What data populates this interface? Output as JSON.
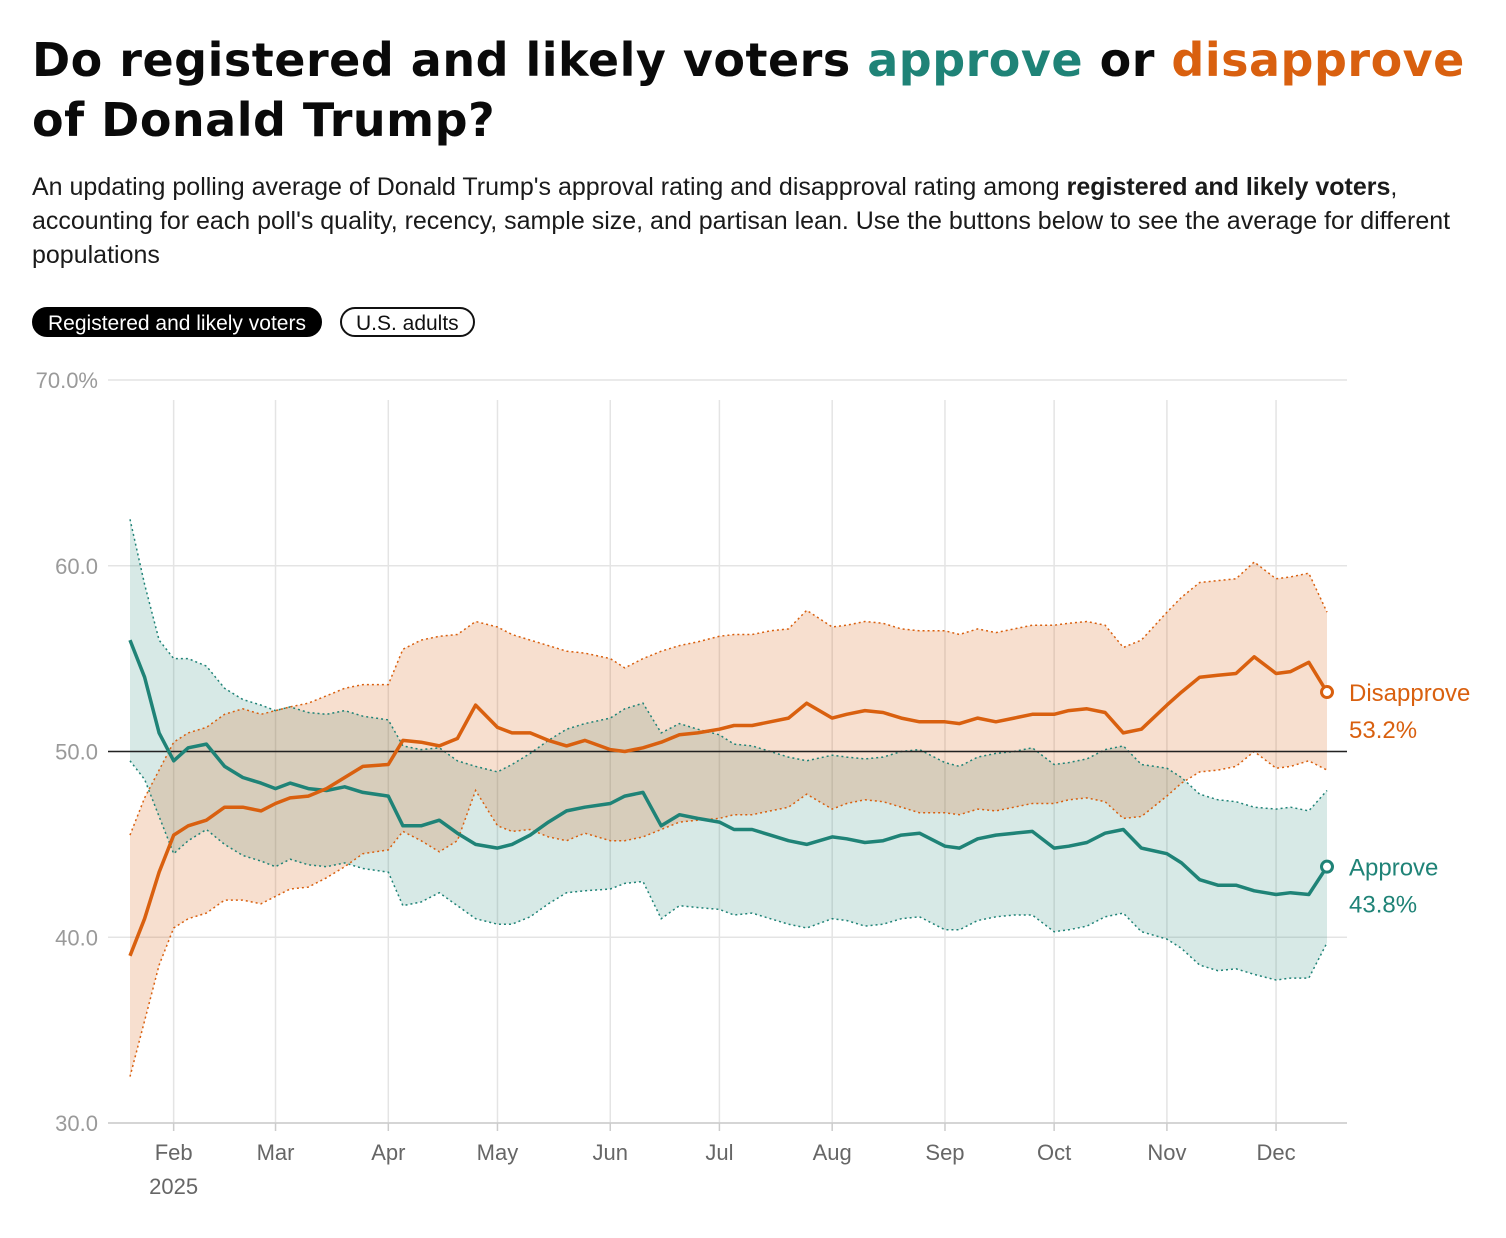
{
  "header": {
    "title_prefix": "Do registered and likely voters ",
    "title_approve": "approve",
    "title_or": " or ",
    "title_disapprove": "disapprove",
    "title_suffix": " of Donald Trump?",
    "subtitle_prefix": "An updating polling average of Donald Trump's approval rating and disapproval rating among ",
    "subtitle_bold": "registered and likely voters",
    "subtitle_suffix": ", accounting for each poll's quality, recency, sample size, and partisan lean. Use the buttons below to see the average for different populations"
  },
  "toggles": {
    "active_label": "Registered and likely voters",
    "other_label": "U.S. adults"
  },
  "colors": {
    "approve": "#1f8377",
    "disapprove": "#d9600f",
    "approve_band": "#d3e6e1",
    "disapprove_band": "#f8dbcc"
  },
  "chart_data": {
    "type": "line",
    "title": "Do registered and likely voters approve or disapprove of Donald Trump?",
    "ylim": [
      30,
      70
    ],
    "y_ticks": [
      30,
      40,
      50,
      60,
      70
    ],
    "y_tick_labels": [
      "30.0",
      "40.0",
      "50.0",
      "60.0",
      "70.0%"
    ],
    "reference_line": 50,
    "grid": true,
    "x_ticks": [
      "2025-02-01",
      "2025-03-01",
      "2025-04-01",
      "2025-05-01",
      "2025-06-01",
      "2025-07-01",
      "2025-08-01",
      "2025-09-01",
      "2025-10-01",
      "2025-11-01",
      "2025-12-01"
    ],
    "x_tick_labels": [
      "Feb",
      "Mar",
      "Apr",
      "May",
      "Jun",
      "Jul",
      "Aug",
      "Sep",
      "Oct",
      "Nov",
      "Dec"
    ],
    "x_year_label": "2025",
    "x": [
      "2025-01-20",
      "2025-01-24",
      "2025-01-28",
      "2025-02-01",
      "2025-02-05",
      "2025-02-10",
      "2025-02-15",
      "2025-02-20",
      "2025-02-25",
      "2025-03-01",
      "2025-03-05",
      "2025-03-10",
      "2025-03-15",
      "2025-03-20",
      "2025-03-25",
      "2025-04-01",
      "2025-04-05",
      "2025-04-10",
      "2025-04-15",
      "2025-04-20",
      "2025-04-25",
      "2025-05-01",
      "2025-05-05",
      "2025-05-10",
      "2025-05-15",
      "2025-05-20",
      "2025-05-25",
      "2025-06-01",
      "2025-06-05",
      "2025-06-10",
      "2025-06-15",
      "2025-06-20",
      "2025-06-25",
      "2025-07-01",
      "2025-07-05",
      "2025-07-10",
      "2025-07-15",
      "2025-07-20",
      "2025-07-25",
      "2025-08-01",
      "2025-08-05",
      "2025-08-10",
      "2025-08-15",
      "2025-08-20",
      "2025-08-25",
      "2025-09-01",
      "2025-09-05",
      "2025-09-10",
      "2025-09-15",
      "2025-09-20",
      "2025-09-25",
      "2025-10-01",
      "2025-10-05",
      "2025-10-10",
      "2025-10-15",
      "2025-10-20",
      "2025-10-25",
      "2025-11-01",
      "2025-11-05",
      "2025-11-10",
      "2025-11-15",
      "2025-11-20",
      "2025-11-25",
      "2025-12-01",
      "2025-12-05",
      "2025-12-10",
      "2025-12-15"
    ],
    "series": [
      {
        "name": "Disapprove",
        "end_value_label": "53.2%",
        "values": [
          39.0,
          41.0,
          43.5,
          45.5,
          46.0,
          46.3,
          47.0,
          47.0,
          46.8,
          47.2,
          47.5,
          47.6,
          48.0,
          48.6,
          49.2,
          49.3,
          50.6,
          50.5,
          50.3,
          50.7,
          52.5,
          51.3,
          51.0,
          51.0,
          50.6,
          50.3,
          50.6,
          50.1,
          50.0,
          50.2,
          50.5,
          50.9,
          51.0,
          51.2,
          51.4,
          51.4,
          51.6,
          51.8,
          52.6,
          51.8,
          52.0,
          52.2,
          52.1,
          51.8,
          51.6,
          51.6,
          51.5,
          51.8,
          51.6,
          51.8,
          52.0,
          52.0,
          52.2,
          52.3,
          52.1,
          51.0,
          51.2,
          52.5,
          53.2,
          54.0,
          54.1,
          54.2,
          55.1,
          54.2,
          54.3,
          54.8,
          53.2
        ],
        "upper": [
          45.5,
          47.5,
          49.0,
          50.5,
          51.0,
          51.3,
          52.0,
          52.3,
          52.0,
          52.2,
          52.4,
          52.6,
          53.0,
          53.4,
          53.6,
          53.6,
          55.5,
          56.0,
          56.2,
          56.3,
          57.0,
          56.7,
          56.3,
          56.0,
          55.7,
          55.4,
          55.3,
          55.0,
          54.5,
          55.0,
          55.4,
          55.7,
          55.9,
          56.2,
          56.3,
          56.3,
          56.5,
          56.6,
          57.6,
          56.7,
          56.8,
          57.0,
          56.9,
          56.6,
          56.5,
          56.5,
          56.3,
          56.6,
          56.4,
          56.6,
          56.8,
          56.8,
          56.9,
          57.0,
          56.8,
          55.6,
          56.0,
          57.5,
          58.3,
          59.1,
          59.2,
          59.3,
          60.2,
          59.3,
          59.4,
          59.6,
          57.5
        ],
        "lower": [
          32.5,
          35.5,
          38.5,
          40.5,
          41.0,
          41.3,
          42.0,
          42.0,
          41.8,
          42.2,
          42.6,
          42.7,
          43.2,
          43.8,
          44.5,
          44.7,
          45.7,
          45.2,
          44.6,
          45.2,
          47.9,
          46.0,
          45.7,
          45.8,
          45.4,
          45.2,
          45.6,
          45.2,
          45.2,
          45.4,
          45.8,
          46.2,
          46.3,
          46.4,
          46.6,
          46.6,
          46.8,
          47.0,
          47.7,
          46.9,
          47.2,
          47.4,
          47.3,
          47.0,
          46.7,
          46.7,
          46.6,
          46.9,
          46.8,
          47.0,
          47.2,
          47.2,
          47.4,
          47.5,
          47.3,
          46.4,
          46.5,
          47.6,
          48.3,
          48.9,
          49.0,
          49.2,
          50.0,
          49.1,
          49.2,
          49.5,
          49.0
        ]
      },
      {
        "name": "Approve",
        "end_value_label": "43.8%",
        "values": [
          56.0,
          54.0,
          51.0,
          49.5,
          50.2,
          50.4,
          49.2,
          48.6,
          48.3,
          48.0,
          48.3,
          48.0,
          47.9,
          48.1,
          47.8,
          47.6,
          46.0,
          46.0,
          46.3,
          45.6,
          45.0,
          44.8,
          45.0,
          45.5,
          46.2,
          46.8,
          47.0,
          47.2,
          47.6,
          47.8,
          46.0,
          46.6,
          46.4,
          46.2,
          45.8,
          45.8,
          45.5,
          45.2,
          45.0,
          45.4,
          45.3,
          45.1,
          45.2,
          45.5,
          45.6,
          44.9,
          44.8,
          45.3,
          45.5,
          45.6,
          45.7,
          44.8,
          44.9,
          45.1,
          45.6,
          45.8,
          44.8,
          44.5,
          44.0,
          43.1,
          42.8,
          42.8,
          42.5,
          42.3,
          42.4,
          42.3,
          43.8
        ],
        "upper": [
          62.5,
          59.0,
          56.0,
          55.0,
          55.0,
          54.6,
          53.4,
          52.8,
          52.5,
          52.2,
          52.4,
          52.1,
          52.0,
          52.2,
          51.9,
          51.7,
          50.3,
          50.1,
          50.2,
          49.5,
          49.2,
          48.9,
          49.3,
          49.9,
          50.6,
          51.2,
          51.5,
          51.8,
          52.3,
          52.6,
          51.0,
          51.5,
          51.2,
          50.9,
          50.4,
          50.3,
          50.0,
          49.7,
          49.5,
          49.8,
          49.7,
          49.6,
          49.7,
          50.0,
          50.1,
          49.4,
          49.2,
          49.7,
          49.9,
          50.0,
          50.2,
          49.3,
          49.4,
          49.6,
          50.1,
          50.3,
          49.3,
          49.1,
          48.6,
          47.7,
          47.4,
          47.3,
          47.0,
          46.9,
          47.0,
          46.8,
          47.9
        ],
        "lower": [
          49.5,
          48.5,
          46.5,
          44.5,
          45.2,
          45.8,
          45.0,
          44.4,
          44.1,
          43.8,
          44.2,
          43.9,
          43.8,
          44.0,
          43.7,
          43.5,
          41.7,
          41.9,
          42.4,
          41.7,
          41.0,
          40.7,
          40.7,
          41.1,
          41.8,
          42.4,
          42.5,
          42.6,
          42.9,
          43.0,
          41.0,
          41.7,
          41.6,
          41.5,
          41.2,
          41.3,
          41.0,
          40.7,
          40.5,
          41.0,
          40.9,
          40.6,
          40.7,
          41.0,
          41.1,
          40.4,
          40.4,
          40.9,
          41.1,
          41.2,
          41.2,
          40.3,
          40.4,
          40.6,
          41.1,
          41.3,
          40.3,
          39.9,
          39.4,
          38.5,
          38.2,
          38.3,
          38.0,
          37.7,
          37.8,
          37.8,
          39.7
        ]
      }
    ]
  }
}
